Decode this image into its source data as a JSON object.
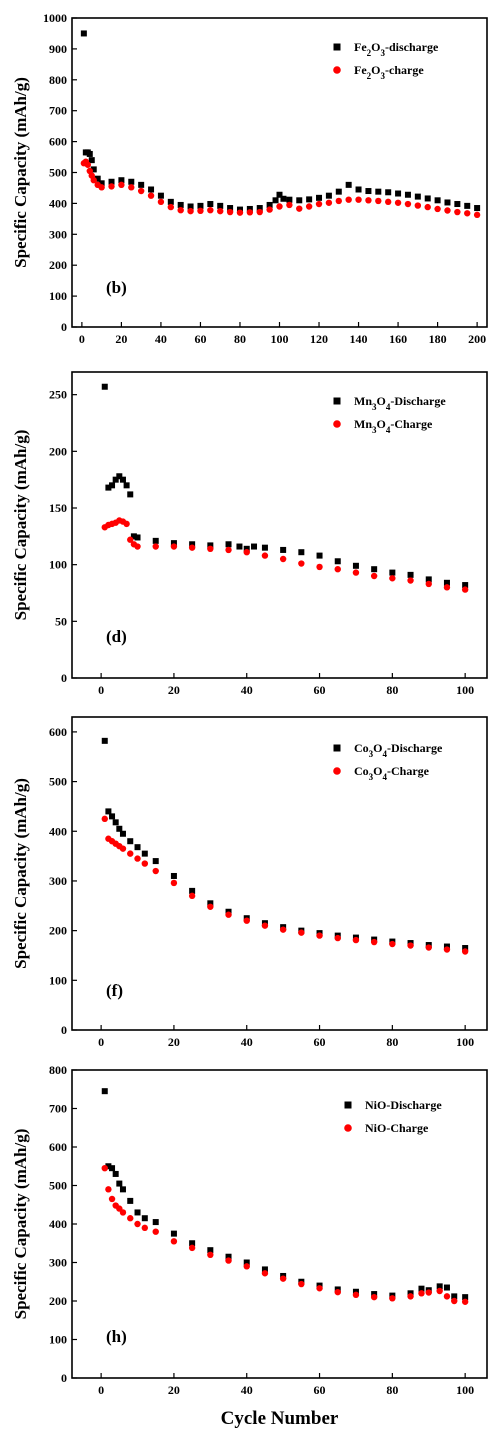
{
  "chart_data": [
    {
      "type": "scatter",
      "panel_label": "(b)",
      "xlabel": "",
      "ylabel": "Specific Capacity (mAh/g)",
      "xlim": [
        -5,
        205
      ],
      "ylim": [
        0,
        1000
      ],
      "xticks": [
        0,
        20,
        40,
        60,
        80,
        100,
        120,
        140,
        160,
        180,
        200
      ],
      "yticks": [
        0,
        100,
        200,
        300,
        400,
        500,
        600,
        700,
        800,
        900,
        1000
      ],
      "legend_position": "top-right",
      "series": [
        {
          "name": "Fe2O3-discharge",
          "legend_label": "Fe₂O₃-discharge",
          "color": "#000000",
          "marker": "square",
          "x": [
            1,
            2,
            3,
            4,
            5,
            6,
            8,
            10,
            15,
            20,
            25,
            30,
            35,
            40,
            45,
            50,
            55,
            60,
            65,
            70,
            75,
            80,
            85,
            90,
            95,
            98,
            100,
            102,
            105,
            110,
            115,
            120,
            125,
            130,
            135,
            140,
            145,
            150,
            155,
            160,
            165,
            170,
            175,
            180,
            185,
            190,
            195,
            200
          ],
          "y": [
            950,
            565,
            565,
            560,
            540,
            510,
            480,
            465,
            470,
            475,
            470,
            460,
            445,
            425,
            405,
            395,
            390,
            392,
            398,
            392,
            385,
            380,
            382,
            385,
            395,
            410,
            428,
            415,
            412,
            410,
            413,
            418,
            425,
            438,
            460,
            445,
            440,
            438,
            436,
            432,
            428,
            422,
            416,
            410,
            403,
            398,
            392,
            385
          ]
        },
        {
          "name": "Fe2O3-charge",
          "legend_label": "Fe₂O₃-charge",
          "color": "#ff0000",
          "marker": "circle",
          "x": [
            1,
            2,
            3,
            4,
            5,
            6,
            8,
            10,
            15,
            20,
            25,
            30,
            35,
            40,
            45,
            50,
            55,
            60,
            65,
            70,
            75,
            80,
            85,
            90,
            95,
            100,
            105,
            110,
            115,
            120,
            125,
            130,
            135,
            140,
            145,
            150,
            155,
            160,
            165,
            170,
            175,
            180,
            185,
            190,
            195,
            200
          ],
          "y": [
            530,
            535,
            525,
            505,
            490,
            475,
            460,
            452,
            455,
            460,
            452,
            440,
            425,
            405,
            388,
            378,
            375,
            376,
            378,
            375,
            372,
            370,
            371,
            372,
            380,
            390,
            395,
            383,
            390,
            398,
            402,
            408,
            412,
            412,
            410,
            408,
            405,
            402,
            398,
            393,
            388,
            382,
            377,
            372,
            368,
            363
          ]
        }
      ]
    },
    {
      "type": "scatter",
      "panel_label": "(d)",
      "xlabel": "",
      "ylabel": "Specific Capacity (mAh/g)",
      "xlim": [
        -8,
        106
      ],
      "ylim": [
        0,
        270
      ],
      "xticks": [
        0,
        20,
        40,
        60,
        80,
        100
      ],
      "yticks": [
        0,
        50,
        100,
        150,
        200,
        250
      ],
      "legend_position": "top-right",
      "series": [
        {
          "name": "Mn3O4-Discharge",
          "legend_label": "Mn₃O₄-Discharge",
          "color": "#000000",
          "marker": "square",
          "x": [
            1,
            2,
            3,
            4,
            5,
            6,
            7,
            8,
            9,
            10,
            15,
            20,
            25,
            30,
            35,
            38,
            40,
            42,
            45,
            50,
            55,
            60,
            65,
            70,
            75,
            80,
            85,
            90,
            95,
            100
          ],
          "y": [
            257,
            168,
            170,
            175,
            178,
            175,
            170,
            162,
            125,
            124,
            121,
            119,
            118,
            117,
            118,
            116,
            114,
            116,
            115,
            113,
            111,
            108,
            103,
            99,
            96,
            93,
            91,
            87,
            84,
            82
          ]
        },
        {
          "name": "Mn3O4-Charge",
          "legend_label": "Mn₃O₄-Charge",
          "color": "#ff0000",
          "marker": "circle",
          "x": [
            1,
            2,
            3,
            4,
            5,
            6,
            7,
            8,
            9,
            10,
            15,
            20,
            25,
            30,
            35,
            40,
            45,
            50,
            55,
            60,
            65,
            70,
            75,
            80,
            85,
            90,
            95,
            100
          ],
          "y": [
            133,
            135,
            136,
            137,
            139,
            138,
            136,
            122,
            118,
            116,
            116,
            116,
            115,
            114,
            113,
            111,
            108,
            105,
            101,
            98,
            96,
            93,
            90,
            88,
            86,
            83,
            80,
            78
          ]
        }
      ]
    },
    {
      "type": "scatter",
      "panel_label": "(f)",
      "xlabel": "",
      "ylabel": "Specific Capacity (mAh/g)",
      "xlim": [
        -8,
        106
      ],
      "ylim": [
        0,
        630
      ],
      "xticks": [
        0,
        20,
        40,
        60,
        80,
        100
      ],
      "yticks": [
        0,
        100,
        200,
        300,
        400,
        500,
        600
      ],
      "legend_position": "top-right",
      "series": [
        {
          "name": "Co3O4-Discharge",
          "legend_label": "Co₃O₄-Discharge",
          "color": "#000000",
          "marker": "square",
          "x": [
            1,
            2,
            3,
            4,
            5,
            6,
            8,
            10,
            12,
            15,
            20,
            25,
            30,
            35,
            40,
            45,
            50,
            55,
            60,
            65,
            70,
            75,
            80,
            85,
            90,
            95,
            100
          ],
          "y": [
            582,
            440,
            430,
            418,
            405,
            395,
            380,
            368,
            355,
            340,
            310,
            280,
            255,
            238,
            225,
            215,
            207,
            200,
            195,
            190,
            186,
            182,
            178,
            175,
            171,
            168,
            165
          ]
        },
        {
          "name": "Co3O4-Charge",
          "legend_label": "Co₃O₄-Charge",
          "color": "#ff0000",
          "marker": "circle",
          "x": [
            1,
            2,
            3,
            4,
            5,
            6,
            8,
            10,
            12,
            15,
            20,
            25,
            30,
            35,
            40,
            45,
            50,
            55,
            60,
            65,
            70,
            75,
            80,
            85,
            90,
            95,
            100
          ],
          "y": [
            425,
            385,
            380,
            375,
            370,
            365,
            355,
            345,
            335,
            320,
            296,
            270,
            248,
            232,
            220,
            210,
            202,
            196,
            190,
            185,
            181,
            177,
            173,
            170,
            166,
            162,
            158
          ]
        }
      ]
    },
    {
      "type": "scatter",
      "panel_label": "(h)",
      "xlabel": "Cycle Number",
      "ylabel": "Specific Capacity (mAh/g)",
      "xlim": [
        -8,
        106
      ],
      "ylim": [
        0,
        800
      ],
      "xticks": [
        0,
        20,
        40,
        60,
        80,
        100
      ],
      "yticks": [
        0,
        100,
        200,
        300,
        400,
        500,
        600,
        700,
        800
      ],
      "legend_position": "top-right",
      "series": [
        {
          "name": "NiO-Discharge",
          "legend_label": "NiO-Discharge",
          "color": "#000000",
          "marker": "square",
          "x": [
            1,
            2,
            3,
            4,
            5,
            6,
            8,
            10,
            12,
            15,
            20,
            25,
            30,
            35,
            40,
            45,
            50,
            55,
            60,
            65,
            70,
            75,
            80,
            85,
            88,
            90,
            93,
            95,
            97,
            100
          ],
          "y": [
            745,
            550,
            545,
            530,
            505,
            490,
            460,
            430,
            415,
            405,
            375,
            350,
            332,
            315,
            300,
            282,
            265,
            250,
            240,
            230,
            224,
            218,
            214,
            220,
            232,
            228,
            238,
            235,
            212,
            210
          ]
        },
        {
          "name": "NiO-Charge",
          "legend_label": "NiO-Charge",
          "color": "#ff0000",
          "marker": "circle",
          "x": [
            1,
            2,
            3,
            4,
            5,
            6,
            8,
            10,
            12,
            15,
            20,
            25,
            30,
            35,
            40,
            45,
            50,
            55,
            60,
            65,
            70,
            75,
            80,
            85,
            88,
            90,
            93,
            95,
            97,
            100
          ],
          "y": [
            545,
            490,
            465,
            448,
            440,
            430,
            415,
            400,
            390,
            380,
            355,
            338,
            320,
            305,
            290,
            272,
            258,
            244,
            233,
            223,
            216,
            210,
            207,
            212,
            220,
            222,
            226,
            212,
            200,
            198
          ]
        }
      ]
    }
  ]
}
